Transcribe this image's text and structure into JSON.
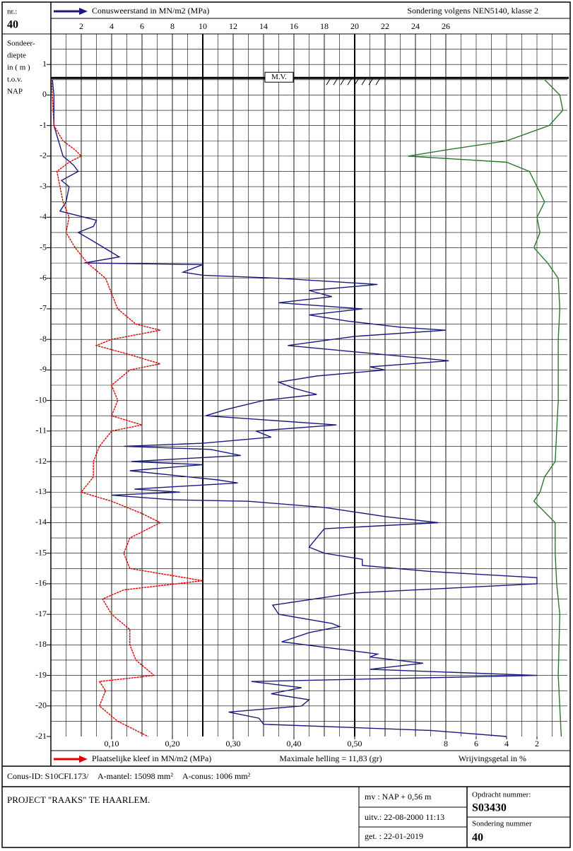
{
  "header": {
    "nr_label": "nr.:",
    "nr": "40",
    "standard": "Sondering volgens NEN5140, klasse 2"
  },
  "chart_data": {
    "type": "cpt",
    "y_label": [
      "Sondeer-",
      "diepte",
      "in ( m )",
      "t.o.v.",
      "NAP"
    ],
    "ylim": [
      -21,
      2
    ],
    "yticks": [
      1,
      0,
      -1,
      -2,
      -3,
      -4,
      -5,
      -6,
      -7,
      -8,
      -9,
      -10,
      -11,
      -12,
      -13,
      -14,
      -15,
      -16,
      -17,
      -18,
      -19,
      -20,
      -21
    ],
    "xlim": [
      0,
      34
    ],
    "xticks": [
      2,
      4,
      6,
      8,
      10,
      12,
      14,
      16,
      18,
      20,
      22,
      24,
      26
    ],
    "x2lim": [
      0,
      0.85
    ],
    "x2ticks": [
      {
        "value": 0.1,
        "label": "0,10"
      },
      {
        "value": 0.2,
        "label": "0,20"
      },
      {
        "value": 0.3,
        "label": "0,30"
      },
      {
        "value": 0.4,
        "label": "0,40"
      },
      {
        "value": 0.5,
        "label": "0,50"
      }
    ],
    "x3lim": [
      34,
      0
    ],
    "x3ticks": [
      8,
      6,
      4,
      2
    ],
    "grid": true,
    "ground_level": 0.56,
    "ground_label": "M.V.",
    "annotation": "Maximale helling = 11,83 (gr)",
    "series": [
      {
        "name": "Conusweerstand in MN/m2 (MPa)",
        "color": "#1a1a80",
        "axis": "x",
        "depth": [
          0.5,
          0,
          -1,
          -1.5,
          -2,
          -2.3,
          -2.5,
          -2.8,
          -3,
          -3.5,
          -3.8,
          -4,
          -4.1,
          -4.3,
          -4.5,
          -4.7,
          -5,
          -5.3,
          -5.5,
          -5.55,
          -5.8,
          -5.9,
          -6,
          -6.2,
          -6.4,
          -6.6,
          -6.8,
          -7,
          -7.2,
          -7.4,
          -7.6,
          -7.7,
          -7.9,
          -8.2,
          -8.5,
          -8.7,
          -8.9,
          -9,
          -9.2,
          -9.4,
          -9.6,
          -9.8,
          -10,
          -10.3,
          -10.5,
          -10.8,
          -11,
          -11.2,
          -11.4,
          -11.5,
          -11.6,
          -11.8,
          -12,
          -12.1,
          -12.3,
          -12.6,
          -12.7,
          -12.9,
          -13,
          -13.1,
          -13.25,
          -13.3,
          -13.5,
          -13.8,
          -14,
          -14.2,
          -14.5,
          -14.8,
          -15,
          -15.2,
          -15.4,
          -15.6,
          -15.8,
          -16,
          -16.3,
          -16.7,
          -17,
          -17.3,
          -17.4,
          -17.6,
          -17.9,
          -18.3,
          -18.4,
          -18.6,
          -18.8,
          -19,
          -19.2,
          -19.4,
          -19.6,
          -19.8,
          -20,
          -20.2,
          -20.4,
          -20.6,
          -20.8,
          -21
        ],
        "values": [
          0.1,
          0.2,
          0.2,
          0.5,
          0.8,
          1.5,
          1.8,
          0.7,
          1.2,
          1,
          0.6,
          2.2,
          3,
          2.8,
          1.8,
          2.5,
          3.5,
          4.5,
          2.2,
          10,
          8.7,
          10,
          15,
          21.5,
          17,
          18.5,
          15,
          20.5,
          17,
          19.5,
          23,
          26,
          20,
          15.6,
          22,
          26.2,
          21,
          22,
          17.5,
          15,
          16,
          17.5,
          14,
          11.5,
          10.2,
          18.8,
          13.5,
          14.5,
          10,
          4.8,
          10.5,
          12.5,
          5.3,
          10,
          5.2,
          11,
          12.3,
          5.5,
          8.5,
          4,
          8,
          13,
          18,
          22,
          25.5,
          18,
          17.5,
          17,
          18,
          20.5,
          20.5,
          25,
          32,
          32,
          20,
          14.6,
          15,
          18.5,
          19,
          17,
          15.2,
          21.5,
          21,
          24.5,
          21,
          32,
          13.2,
          16.5,
          14.5,
          17,
          16.5,
          11.7,
          13.7,
          14,
          25,
          30
        ]
      },
      {
        "name": "Plaatselijke kleef in MN/m2 (MPa)",
        "color": "#e00000",
        "axis": "x2",
        "depth": [
          0.5,
          -1,
          -1.5,
          -1.8,
          -2,
          -2.2,
          -2.5,
          -3,
          -3.5,
          -4,
          -4.5,
          -5,
          -5.5,
          -6,
          -6.5,
          -7,
          -7.5,
          -7.7,
          -8,
          -8.2,
          -8.5,
          -8.8,
          -9,
          -9.5,
          -10,
          -10.5,
          -10.8,
          -11,
          -11.5,
          -12,
          -12.5,
          -13,
          -13.3,
          -13.7,
          -14,
          -14.5,
          -15,
          -15.5,
          -15.9,
          -16.2,
          -16.5,
          -17,
          -17.5,
          -18,
          -18.5,
          -19,
          -19.2,
          -19.5,
          -20,
          -20.5,
          -21
        ],
        "values": [
          0.001,
          0.005,
          0.02,
          0.04,
          0.05,
          0.03,
          0.01,
          0.015,
          0.02,
          0.03,
          0.025,
          0.04,
          0.06,
          0.09,
          0.1,
          0.11,
          0.14,
          0.18,
          0.1,
          0.075,
          0.13,
          0.18,
          0.13,
          0.1,
          0.11,
          0.1,
          0.15,
          0.1,
          0.08,
          0.07,
          0.07,
          0.05,
          0.1,
          0.15,
          0.18,
          0.13,
          0.12,
          0.13,
          0.25,
          0.12,
          0.085,
          0.1,
          0.13,
          0.13,
          0.14,
          0.17,
          0.08,
          0.09,
          0.08,
          0.11,
          0.16
        ]
      },
      {
        "name": "Wrijvingsgetal in %",
        "color": "#2a7a2a",
        "axis": "x3",
        "depth": [
          0.5,
          0,
          -0.5,
          -1,
          -1.5,
          -1.8,
          -2,
          -2.2,
          -2.5,
          -3,
          -3.5,
          -4,
          -4.5,
          -5,
          -5.5,
          -6,
          -7,
          -8,
          -10,
          -11,
          -12,
          -12.5,
          -13,
          -13.3,
          -14,
          -15,
          -16,
          -17,
          -19,
          -21
        ],
        "values": [
          1.5,
          0.5,
          0.3,
          1.2,
          4,
          8,
          10.5,
          4,
          2.5,
          2,
          1.5,
          2,
          1.8,
          2.2,
          1.3,
          0.6,
          0.5,
          0.6,
          0.6,
          0.7,
          0.8,
          1.5,
          1.8,
          2.2,
          0.8,
          0.8,
          0.7,
          0.5,
          0.6,
          0.4
        ]
      }
    ]
  },
  "footer": {
    "conus_id": "Conus-ID: S10CFI.173/",
    "a_mantel": "A-mantel: 15098 mm²",
    "a_conus": "A-conus: 1006 mm²",
    "project": "PROJECT \"RAAKS\" TE HAARLEM.",
    "mv": "mv  : NAP + 0,56 m",
    "uitv": "uitv.: 22-08-2000    11:13",
    "get": "get. : 22-01-2019",
    "opdracht_label": "Opdracht nummer:",
    "opdracht": "S03430",
    "sondering_label": "Sondering nummer",
    "sondering": "40"
  }
}
